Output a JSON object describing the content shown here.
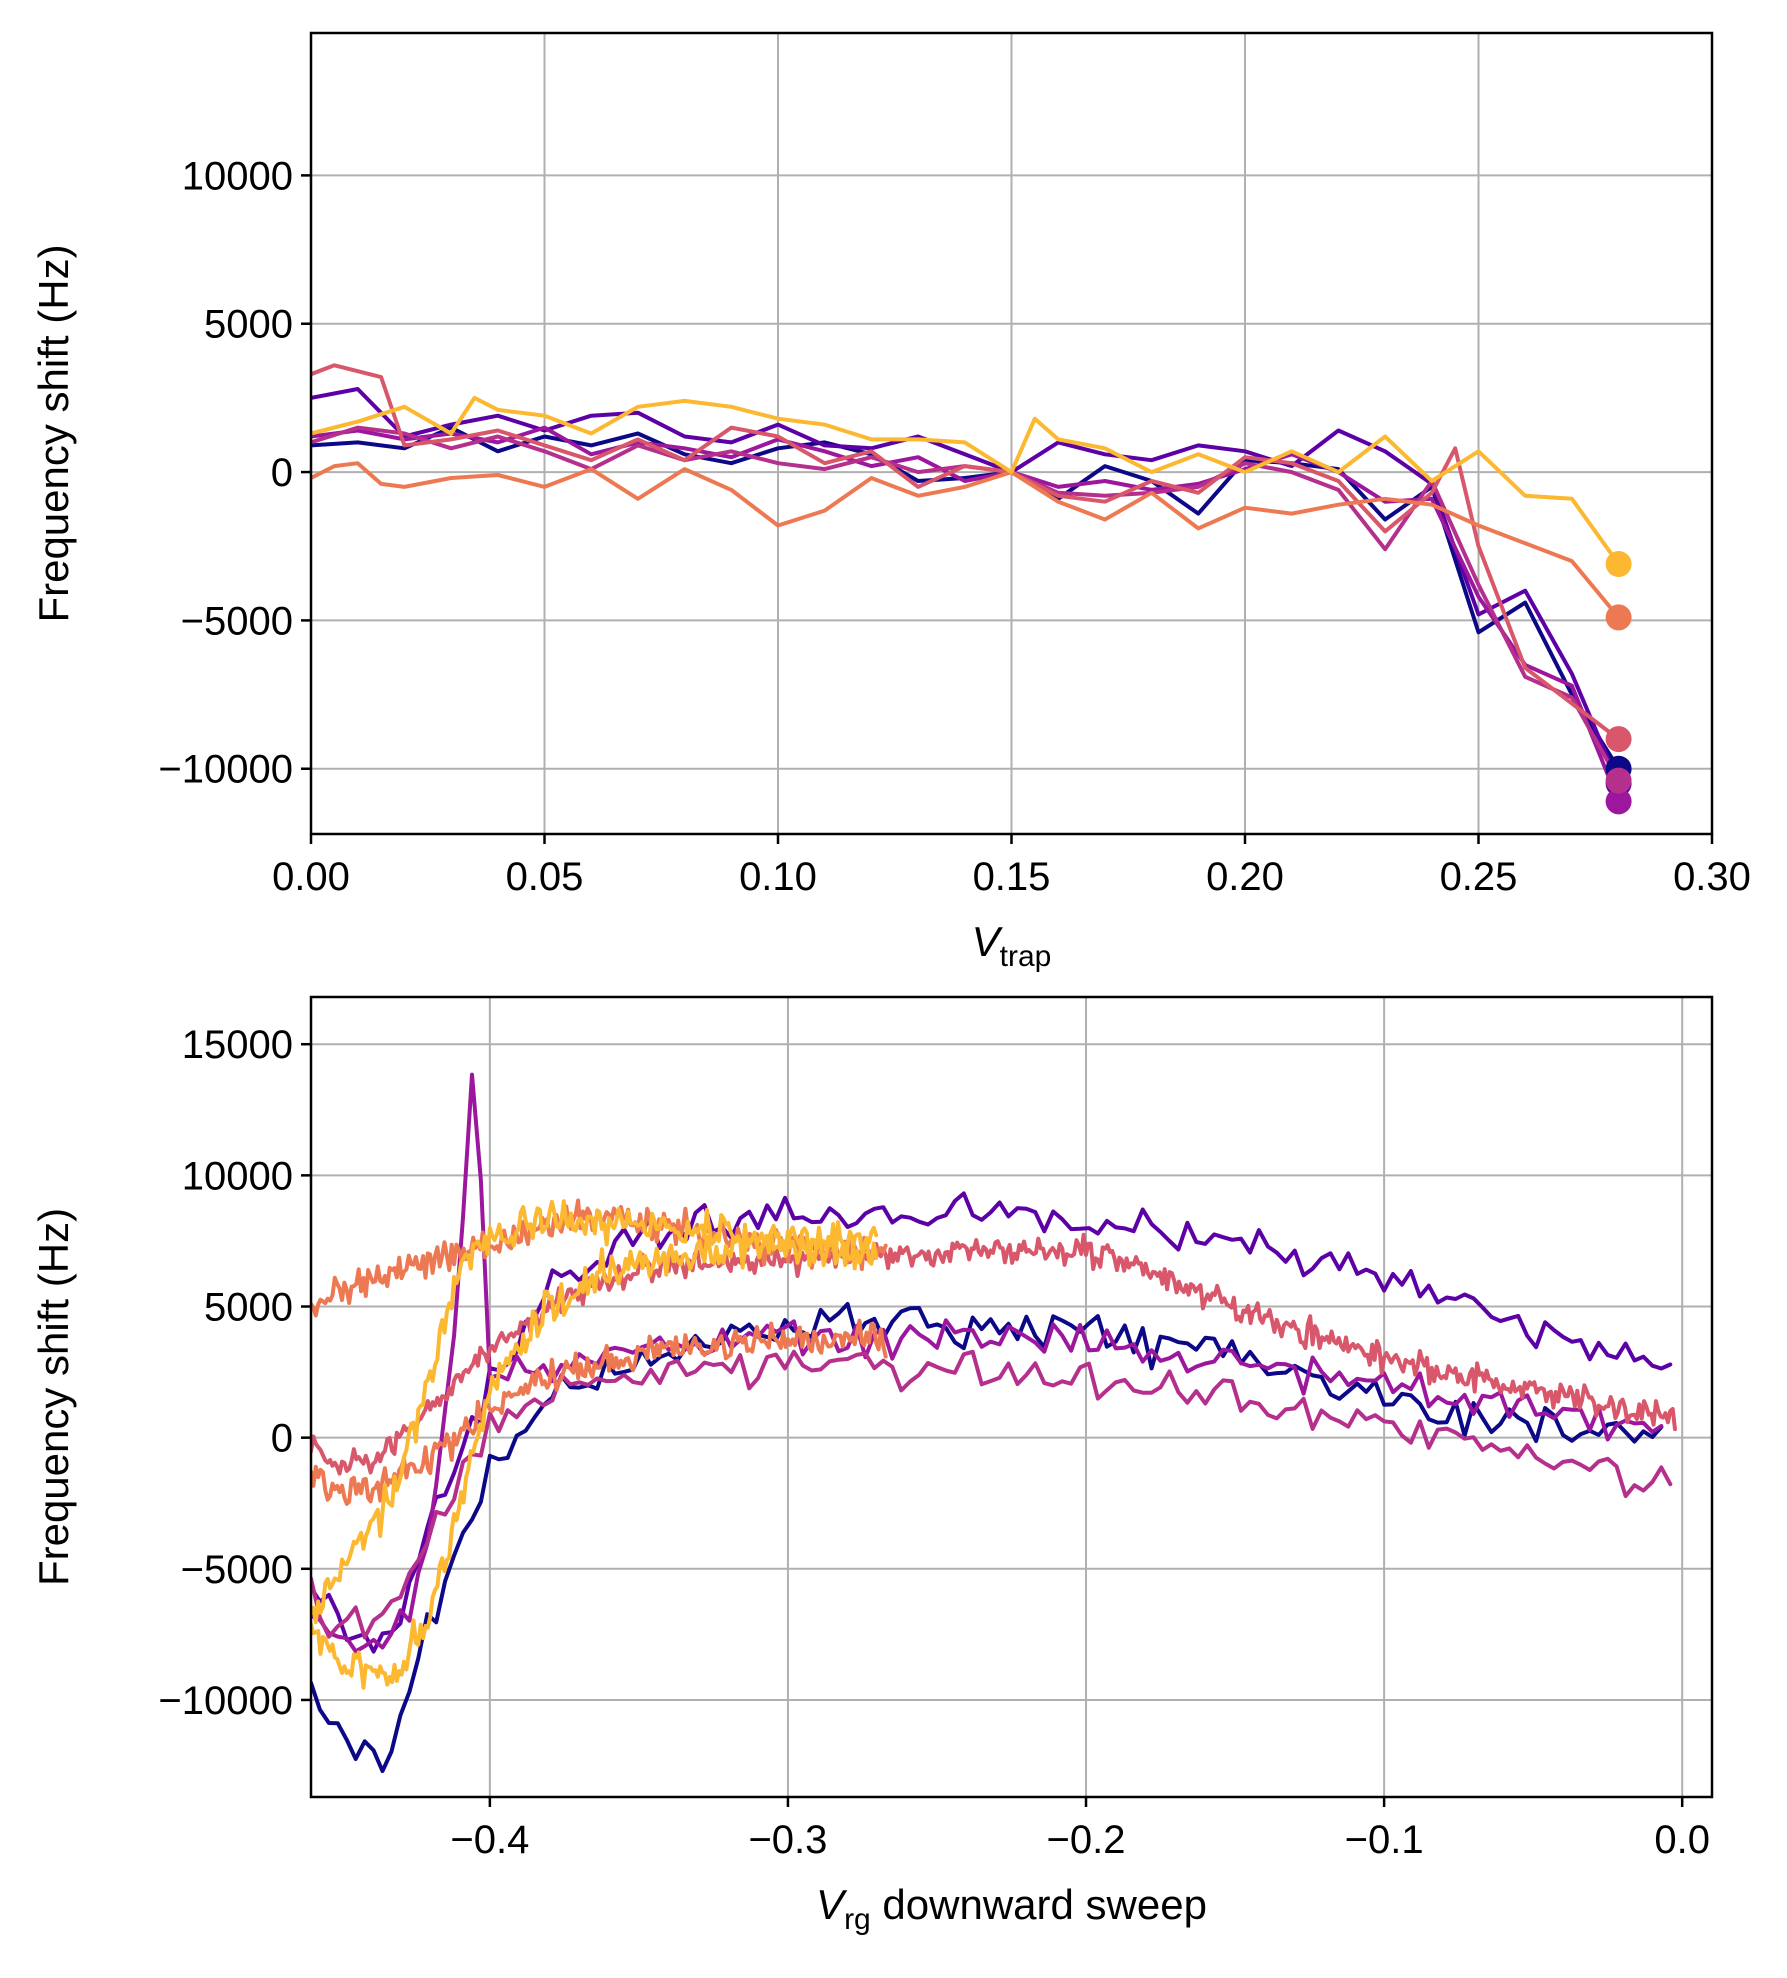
{
  "colors": [
    "#0d0887",
    "#5c01a6",
    "#9c179e",
    "#b52f8c",
    "#d8576b",
    "#ed7953",
    "#fbb830"
  ],
  "chart_data": [
    {
      "type": "line",
      "xlabel": "V",
      "xlabel_sub": "trap",
      "xlabel_rest": "",
      "ylabel": "Frequency shift (Hz)",
      "xlim": [
        0.0,
        0.3
      ],
      "ylim": [
        -12200,
        14800
      ],
      "xticks": [
        0.0,
        0.05,
        0.1,
        0.15,
        0.2,
        0.25,
        0.3
      ],
      "xtick_labels": [
        "0.00",
        "0.05",
        "0.10",
        "0.15",
        "0.20",
        "0.25",
        "0.30"
      ],
      "yticks": [
        -10000,
        -5000,
        0,
        5000,
        10000
      ],
      "ytick_labels": [
        "−10000",
        "−5000",
        "0",
        "5000",
        "10000"
      ],
      "grid": true,
      "series": [
        {
          "color_index": 0,
          "x": [
            0,
            0.01,
            0.02,
            0.03,
            0.04,
            0.05,
            0.06,
            0.07,
            0.08,
            0.09,
            0.1,
            0.11,
            0.12,
            0.13,
            0.14,
            0.15,
            0.16,
            0.17,
            0.18,
            0.19,
            0.2,
            0.21,
            0.22,
            0.23,
            0.24,
            0.25,
            0.26,
            0.27,
            0.28
          ],
          "y": [
            900,
            1000,
            800,
            1500,
            700,
            1200,
            900,
            1300,
            600,
            300,
            800,
            1000,
            600,
            -300,
            -200,
            0,
            -900,
            200,
            -300,
            -1400,
            400,
            300,
            100,
            -1600,
            -500,
            -5400,
            -4400,
            -7500,
            -10000
          ],
          "end_marker": -10000
        },
        {
          "color_index": 1,
          "x": [
            0,
            0.01,
            0.02,
            0.03,
            0.04,
            0.05,
            0.06,
            0.07,
            0.08,
            0.09,
            0.1,
            0.11,
            0.12,
            0.13,
            0.14,
            0.15,
            0.16,
            0.17,
            0.18,
            0.19,
            0.2,
            0.21,
            0.22,
            0.23,
            0.24,
            0.25,
            0.26,
            0.27,
            0.28
          ],
          "y": [
            2500,
            2800,
            1200,
            1600,
            1900,
            1400,
            1900,
            2000,
            1200,
            1000,
            1600,
            900,
            800,
            1200,
            600,
            0,
            1000,
            600,
            400,
            900,
            700,
            200,
            1400,
            700,
            -400,
            -4800,
            -4000,
            -6800,
            -10500
          ],
          "end_marker": -10500
        },
        {
          "color_index": 2,
          "x": [
            0,
            0.01,
            0.02,
            0.03,
            0.04,
            0.05,
            0.06,
            0.07,
            0.08,
            0.09,
            0.1,
            0.11,
            0.12,
            0.13,
            0.14,
            0.15,
            0.16,
            0.17,
            0.18,
            0.19,
            0.2,
            0.21,
            0.22,
            0.23,
            0.24,
            0.25,
            0.26,
            0.27,
            0.28
          ],
          "y": [
            1200,
            1400,
            1100,
            1300,
            1000,
            1500,
            600,
            1000,
            800,
            500,
            1100,
            700,
            200,
            500,
            -300,
            0,
            -500,
            -300,
            -600,
            -400,
            100,
            600,
            0,
            -1000,
            -900,
            -4200,
            -6500,
            -7200,
            -11100
          ],
          "end_marker": -11100
        },
        {
          "color_index": 3,
          "x": [
            0,
            0.01,
            0.02,
            0.03,
            0.04,
            0.05,
            0.06,
            0.07,
            0.08,
            0.09,
            0.1,
            0.11,
            0.12,
            0.13,
            0.14,
            0.15,
            0.16,
            0.17,
            0.18,
            0.19,
            0.2,
            0.21,
            0.22,
            0.23,
            0.24,
            0.25,
            0.26,
            0.27,
            0.28
          ],
          "y": [
            1000,
            1500,
            1300,
            800,
            1200,
            700,
            100,
            900,
            400,
            700,
            300,
            100,
            500,
            0,
            200,
            0,
            -700,
            -800,
            -700,
            -500,
            300,
            0,
            -600,
            -2600,
            -300,
            -3800,
            -6900,
            -7600,
            -10400
          ],
          "end_marker": -10400
        },
        {
          "color_index": 4,
          "x": [
            0,
            0.005,
            0.015,
            0.02,
            0.03,
            0.04,
            0.05,
            0.06,
            0.07,
            0.08,
            0.09,
            0.1,
            0.11,
            0.12,
            0.13,
            0.14,
            0.15,
            0.16,
            0.17,
            0.18,
            0.19,
            0.2,
            0.21,
            0.22,
            0.23,
            0.24,
            0.245,
            0.25,
            0.26,
            0.27,
            0.28
          ],
          "y": [
            3300,
            3600,
            3200,
            900,
            1100,
            1400,
            900,
            400,
            1100,
            400,
            1500,
            1200,
            300,
            700,
            -500,
            200,
            0,
            -800,
            -1000,
            -300,
            -700,
            500,
            300,
            -300,
            -2000,
            -700,
            800,
            -2500,
            -6600,
            -7800,
            -9000
          ],
          "end_marker": -9000
        },
        {
          "color_index": 5,
          "x": [
            0,
            0.005,
            0.01,
            0.015,
            0.02,
            0.03,
            0.04,
            0.05,
            0.06,
            0.07,
            0.08,
            0.09,
            0.1,
            0.11,
            0.12,
            0.13,
            0.14,
            0.15,
            0.16,
            0.17,
            0.18,
            0.19,
            0.2,
            0.21,
            0.22,
            0.23,
            0.24,
            0.25,
            0.26,
            0.27,
            0.28
          ],
          "y": [
            -200,
            200,
            300,
            -400,
            -500,
            -200,
            -100,
            -500,
            100,
            -900,
            100,
            -600,
            -1800,
            -1300,
            -200,
            -800,
            -500,
            0,
            -1000,
            -1600,
            -700,
            -1900,
            -1200,
            -1400,
            -1100,
            -900,
            -1100,
            -1800,
            -2400,
            -3000,
            -4900
          ],
          "end_marker": -4900
        },
        {
          "color_index": 6,
          "x": [
            0,
            0.01,
            0.02,
            0.03,
            0.035,
            0.04,
            0.05,
            0.06,
            0.07,
            0.08,
            0.09,
            0.1,
            0.11,
            0.12,
            0.13,
            0.14,
            0.15,
            0.155,
            0.16,
            0.17,
            0.18,
            0.19,
            0.2,
            0.21,
            0.22,
            0.23,
            0.24,
            0.25,
            0.26,
            0.27,
            0.28
          ],
          "y": [
            1300,
            1700,
            2200,
            1300,
            2500,
            2100,
            1900,
            1300,
            2200,
            2400,
            2200,
            1800,
            1600,
            1100,
            1100,
            1000,
            0,
            1800,
            1100,
            800,
            0,
            600,
            0,
            700,
            0,
            1200,
            -300,
            700,
            -800,
            -900,
            -3100
          ],
          "end_marker": -3100
        }
      ]
    },
    {
      "type": "line",
      "xlabel": "V",
      "xlabel_sub": "rg",
      "xlabel_rest": " downward sweep",
      "ylabel": "Frequency shift (Hz)",
      "xlim": [
        -0.46,
        0.01
      ],
      "ylim": [
        -13700,
        16800
      ],
      "xticks": [
        -0.4,
        -0.3,
        -0.2,
        -0.1,
        0.0
      ],
      "xtick_labels": [
        "−0.4",
        "−0.3",
        "−0.2",
        "−0.1",
        "0.0"
      ],
      "yticks": [
        -10000,
        -5000,
        0,
        5000,
        10000,
        15000
      ],
      "ytick_labels": [
        "−10000",
        "−5000",
        "0",
        "5000",
        "10000",
        "15000"
      ],
      "grid": true,
      "series": [
        {
          "color_index": 0,
          "noise": 700,
          "step": 0.003,
          "x_range": [
            -0.46,
            -0.005
          ],
          "knots_x": [
            -0.46,
            -0.45,
            -0.44,
            -0.435,
            -0.43,
            -0.42,
            -0.4,
            -0.38,
            -0.35,
            -0.3,
            -0.25,
            -0.2,
            -0.15,
            -0.1,
            -0.05,
            -0.005
          ],
          "knots_y": [
            -9500,
            -11200,
            -11800,
            -12200,
            -10500,
            -7000,
            -1000,
            1500,
            3000,
            4300,
            4200,
            4000,
            3200,
            1500,
            500,
            0
          ]
        },
        {
          "color_index": 1,
          "noise": 700,
          "step": 0.003,
          "x_range": [
            -0.46,
            -0.003
          ],
          "knots_x": [
            -0.46,
            -0.45,
            -0.44,
            -0.43,
            -0.42,
            -0.4,
            -0.38,
            -0.35,
            -0.3,
            -0.25,
            -0.2,
            -0.15,
            -0.1,
            -0.05,
            -0.003
          ],
          "knots_y": [
            -6000,
            -7200,
            -7600,
            -7000,
            -3000,
            2000,
            5500,
            7800,
            8600,
            8500,
            8300,
            7500,
            6200,
            4200,
            2600
          ]
        },
        {
          "color_index": 2,
          "noise": 700,
          "step": 0.003,
          "x_range": [
            -0.46,
            -0.005
          ],
          "knots_x": [
            -0.46,
            -0.45,
            -0.44,
            -0.43,
            -0.42,
            -0.41,
            -0.405,
            -0.4,
            -0.38,
            -0.35,
            -0.3,
            -0.25,
            -0.2,
            -0.15,
            -0.1,
            -0.05,
            -0.005
          ],
          "knots_y": [
            -6500,
            -7600,
            -8000,
            -7200,
            -4500,
            7000,
            15300,
            2000,
            2600,
            3600,
            4000,
            3800,
            3600,
            3000,
            2000,
            1000,
            300
          ]
        },
        {
          "color_index": 3,
          "noise": 800,
          "step": 0.003,
          "x_range": [
            -0.46,
            -0.003
          ],
          "knots_x": [
            -0.46,
            -0.45,
            -0.44,
            -0.43,
            -0.42,
            -0.4,
            -0.38,
            -0.35,
            -0.3,
            -0.25,
            -0.2,
            -0.15,
            -0.1,
            -0.05,
            -0.003
          ],
          "knots_y": [
            -6000,
            -7500,
            -7500,
            -6000,
            -3000,
            200,
            1800,
            2500,
            2800,
            2600,
            2300,
            1500,
            500,
            -500,
            -1600
          ]
        },
        {
          "color_index": 4,
          "noise": 500,
          "step": 0.0008,
          "x_range": [
            -0.46,
            -0.002
          ],
          "knots_x": [
            -0.46,
            -0.45,
            -0.44,
            -0.43,
            -0.41,
            -0.4,
            -0.38,
            -0.35,
            -0.3,
            -0.25,
            -0.2,
            -0.15,
            -0.1,
            -0.05,
            -0.002
          ],
          "knots_y": [
            -500,
            -1000,
            -900,
            0,
            2200,
            3300,
            5000,
            6500,
            6800,
            7000,
            7200,
            5000,
            3000,
            1800,
            700
          ]
        },
        {
          "color_index": 5,
          "noise": 600,
          "step": 0.0008,
          "x_range": [
            -0.46,
            -0.267
          ],
          "knots_x": [
            -0.46,
            -0.45,
            -0.44,
            -0.43,
            -0.41,
            -0.39,
            -0.37,
            -0.35,
            -0.33,
            -0.3,
            -0.267
          ],
          "knots_y": [
            5000,
            5700,
            6000,
            6400,
            7000,
            7600,
            8500,
            8200,
            7800,
            7300,
            7000
          ]
        },
        {
          "color_index": 5,
          "noise": 600,
          "step": 0.0008,
          "x_range": [
            -0.46,
            -0.267
          ],
          "knots_x": [
            -0.46,
            -0.45,
            -0.44,
            -0.43,
            -0.41,
            -0.4,
            -0.38,
            -0.35,
            -0.3,
            -0.267
          ],
          "knots_y": [
            -1500,
            -2000,
            -2000,
            -1500,
            0,
            1200,
            2400,
            3300,
            3800,
            3700
          ]
        },
        {
          "color_index": 6,
          "noise": 700,
          "step": 0.0008,
          "x_range": [
            -0.46,
            -0.27
          ],
          "knots_x": [
            -0.46,
            -0.45,
            -0.44,
            -0.43,
            -0.42,
            -0.41,
            -0.4,
            -0.38,
            -0.36,
            -0.33,
            -0.3,
            -0.27
          ],
          "knots_y": [
            -7500,
            -8500,
            -9000,
            -9000,
            -6500,
            -2500,
            2000,
            5000,
            6500,
            7000,
            7300,
            7000
          ]
        },
        {
          "color_index": 6,
          "noise": 700,
          "step": 0.0008,
          "x_range": [
            -0.46,
            -0.27
          ],
          "knots_x": [
            -0.46,
            -0.45,
            -0.44,
            -0.43,
            -0.42,
            -0.41,
            -0.4,
            -0.38,
            -0.36,
            -0.33,
            -0.3,
            -0.27
          ],
          "knots_y": [
            -6500,
            -5000,
            -3500,
            -1500,
            2500,
            6500,
            7700,
            8300,
            8200,
            7800,
            7600,
            7200
          ]
        }
      ]
    }
  ]
}
